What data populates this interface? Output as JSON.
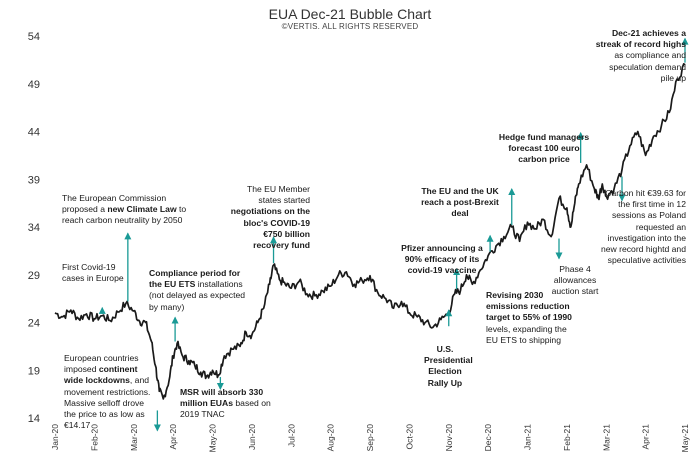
{
  "header": {
    "title": "EUA Dec-21 Bubble Chart",
    "subtitle": "©VERTIS. ALL RIGHTS RESERVED"
  },
  "colors": {
    "line": "#1a1a1a",
    "arrow": "#1a9a96",
    "text": "#1a1a1a"
  },
  "chart_data": {
    "type": "line",
    "title": "EUA Dec-21 Bubble Chart",
    "xlabel": "",
    "ylabel": "",
    "ylim": [
      14,
      54
    ],
    "y_ticks": [
      14,
      19,
      24,
      29,
      34,
      39,
      44,
      49,
      54
    ],
    "x_ticks": [
      "Jan-20",
      "Feb-20",
      "Mar-20",
      "Apr-20",
      "May-20",
      "Jun-20",
      "Jul-20",
      "Aug-20",
      "Sep-20",
      "Oct-20",
      "Nov-20",
      "Dec-20",
      "Jan-21",
      "Feb-21",
      "Mar-21",
      "Apr-21",
      "May-21"
    ],
    "grid": false,
    "series": [
      {
        "name": "EUA Dec-21",
        "x": [
          0,
          0.2,
          0.4,
          0.6,
          0.8,
          1.0,
          1.2,
          1.4,
          1.6,
          1.8,
          2.0,
          2.15,
          2.3,
          2.45,
          2.55,
          2.65,
          2.75,
          2.9,
          3.0,
          3.1,
          3.25,
          3.4,
          3.55,
          3.7,
          3.85,
          4.0,
          4.15,
          4.3,
          4.5,
          4.7,
          4.85,
          5.0,
          5.15,
          5.3,
          5.45,
          5.55,
          5.7,
          5.85,
          6.0,
          6.2,
          6.4,
          6.6,
          6.8,
          7.0,
          7.2,
          7.4,
          7.6,
          7.8,
          8.0,
          8.2,
          8.4,
          8.6,
          8.8,
          9.0,
          9.2,
          9.4,
          9.6,
          9.8,
          10.0,
          10.15,
          10.3,
          10.45,
          10.6,
          10.8,
          11.0,
          11.2,
          11.4,
          11.6,
          11.8,
          12.0,
          12.2,
          12.4,
          12.6,
          12.8,
          13.0,
          13.1,
          13.2,
          13.3,
          13.5,
          13.7,
          13.8,
          13.9,
          14.0,
          14.2,
          14.4,
          14.6,
          14.8,
          15.0,
          15.2,
          15.4,
          15.6,
          15.8,
          16.0
        ],
        "values": [
          25.0,
          24.6,
          25.3,
          24.4,
          24.9,
          24.4,
          24.7,
          24.2,
          25.1,
          26.0,
          25.2,
          24.1,
          24.0,
          22.0,
          19.5,
          16.8,
          16.0,
          18.0,
          20.5,
          21.8,
          20.4,
          20.0,
          19.5,
          18.8,
          18.4,
          19.0,
          18.5,
          20.5,
          21.2,
          21.5,
          23.0,
          22.7,
          24.0,
          25.5,
          28.0,
          30.0,
          28.5,
          28.0,
          27.6,
          28.3,
          27.0,
          26.8,
          27.3,
          27.8,
          29.0,
          29.3,
          28.0,
          28.4,
          28.9,
          27.1,
          26.5,
          25.5,
          26.2,
          25.0,
          24.6,
          24.0,
          23.5,
          24.3,
          25.0,
          27.0,
          27.4,
          29.0,
          28.0,
          29.5,
          31.0,
          32.0,
          33.0,
          34.0,
          32.5,
          34.5,
          33.8,
          34.8,
          33.0,
          37.0,
          36.0,
          34.0,
          36.5,
          38.5,
          40.5,
          38.0,
          37.0,
          38.5,
          37.2,
          38.0,
          40.0,
          42.5,
          44.0,
          41.5,
          43.5,
          44.6,
          46.0,
          49.5,
          51.0
        ]
      }
    ],
    "annotations": [
      {
        "prefix": "The European Commission proposed a ",
        "bold": "new Climate Law",
        "suffix": " to reach carbon neutrality by 2050",
        "x": 1.85,
        "y": 26.0,
        "dir": "up"
      },
      {
        "prefix": "First Covid-19 cases in Europe",
        "bold": "",
        "suffix": "",
        "x": 1.2,
        "y": 24.7,
        "dir": "up"
      },
      {
        "prefix": "European countries imposed ",
        "bold": "continent wide lockdowns",
        "suffix": ", and movement restrictions. Massive selloff drove the price to as low as €14.17",
        "x": 2.6,
        "y": 15.0,
        "dir": "down"
      },
      {
        "prefix": "",
        "bold": "Compliance period for the EU ETS",
        "suffix": " installations (not delayed as expected by many)",
        "x": 3.05,
        "y": 21.8,
        "dir": "up"
      },
      {
        "prefix": "",
        "bold": "MSR will absorb 330 million EUAs",
        "suffix": " based on 2019 TNAC",
        "x": 4.2,
        "y": 18.5,
        "dir": "down"
      },
      {
        "prefix": "The EU Member states started ",
        "bold": "negotiations on the bloc's COVID-19 €750 billion recovery fund",
        "suffix": "",
        "x": 5.55,
        "y": 30.0,
        "dir": "up"
      },
      {
        "prefix": "",
        "bold": "Pfizer announcing a 90% efficacy of its covid-19 vaccine",
        "suffix": "",
        "x": 10.2,
        "y": 27.3,
        "dir": "up"
      },
      {
        "prefix": "",
        "bold": "U.S. Presidential Election Rally Up",
        "suffix": "",
        "x": 10.0,
        "y": 23.4,
        "dir": "up"
      },
      {
        "prefix": "",
        "bold": "The EU and the UK reach a post-Brexit deal",
        "suffix": "",
        "x": 11.6,
        "y": 34.0,
        "dir": "up"
      },
      {
        "prefix": "",
        "bold": "Revising 2030 emissions reduction target to 55% of 1990",
        "suffix": " levels, expanding the EU ETS to shipping",
        "x": 11.05,
        "y": 31.2,
        "dir": "up"
      },
      {
        "prefix": "",
        "bold": "Hedge fund managers forecast 100 euro carbon price",
        "suffix": "",
        "x": 13.35,
        "y": 40.5,
        "dir": "up"
      },
      {
        "prefix": "Phase 4 allowances auction start",
        "bold": "",
        "suffix": "",
        "x": 12.8,
        "y": 33.0,
        "dir": "down"
      },
      {
        "prefix": "Carbon hit €39.63 for the first time in 12 sessions as Poland requested an investigation into the new record hightd and speculative activities",
        "bold": "",
        "suffix": "",
        "x": 14.4,
        "y": 39.5,
        "dir": "down"
      },
      {
        "prefix": "",
        "bold": "Dec-21 achieves a streak of record highs",
        "suffix": " as compliance and speculation demand pile up",
        "x": 16.0,
        "y": 51.0,
        "dir": "up"
      }
    ]
  }
}
